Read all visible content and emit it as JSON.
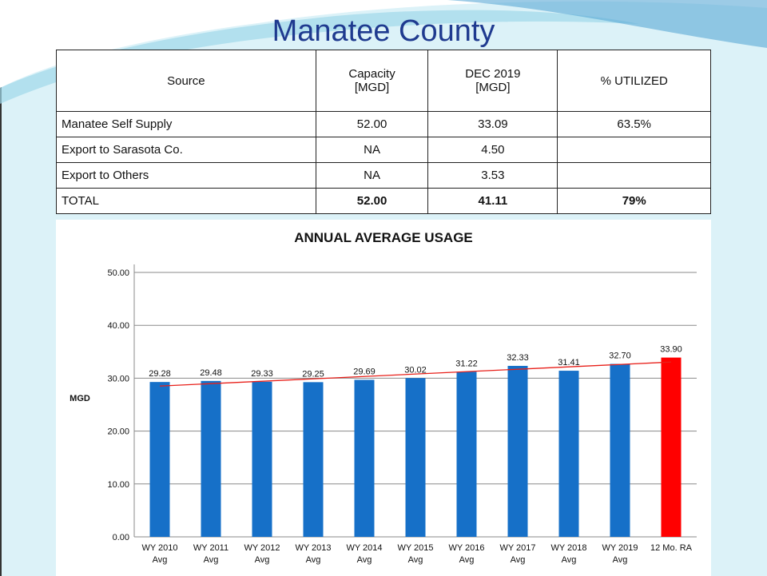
{
  "title": "Manatee County",
  "table": {
    "header": [
      "Source",
      "Capacity\n[MGD]",
      "DEC 2019\n[MGD]",
      "% UTILIZED"
    ],
    "rows": [
      [
        "Manatee Self Supply",
        "52.00",
        "33.09",
        "63.5%"
      ],
      [
        "Export to Sarasota Co.",
        "NA",
        "4.50"
      ],
      [
        "Export to Others",
        "NA",
        "3.53"
      ],
      [
        "TOTAL",
        "52.00",
        "41.11",
        "79%"
      ]
    ]
  },
  "chart_data": {
    "type": "bar",
    "title": "ANNUAL AVERAGE USAGE",
    "ylabel": "MGD",
    "categories": [
      "WY 2010\nAvg",
      "WY 2011\nAvg",
      "WY 2012\nAvg",
      "WY 2013\nAvg",
      "WY 2014\nAvg",
      "WY 2015\nAvg",
      "WY 2016\nAvg",
      "WY 2017\nAvg",
      "WY 2018\nAvg",
      "WY 2019\nAvg",
      "12 Mo. RA"
    ],
    "values": [
      29.28,
      29.48,
      29.33,
      29.25,
      29.69,
      30.02,
      31.22,
      32.33,
      31.41,
      32.7,
      33.9
    ],
    "value_labels": [
      "29.28",
      "29.48",
      "29.33",
      "29.25",
      "29.69",
      "30.02",
      "31.22",
      "32.33",
      "31.41",
      "32.70",
      "33.90"
    ],
    "colors": [
      "#1670c8",
      "#1670c8",
      "#1670c8",
      "#1670c8",
      "#1670c8",
      "#1670c8",
      "#1670c8",
      "#1670c8",
      "#1670c8",
      "#1670c8",
      "#ff0000"
    ],
    "trendline": {
      "type": "linear",
      "color": "#e8201a"
    },
    "ylim": [
      0,
      50
    ],
    "yticks": [
      {
        "value": 0,
        "label": "0.00"
      },
      {
        "value": 10,
        "label": "10.00"
      },
      {
        "value": 20,
        "label": "20.00"
      },
      {
        "value": 30,
        "label": "30.00"
      },
      {
        "value": 40,
        "label": "40.00"
      },
      {
        "value": 50,
        "label": "50.00"
      }
    ],
    "grid": true
  }
}
